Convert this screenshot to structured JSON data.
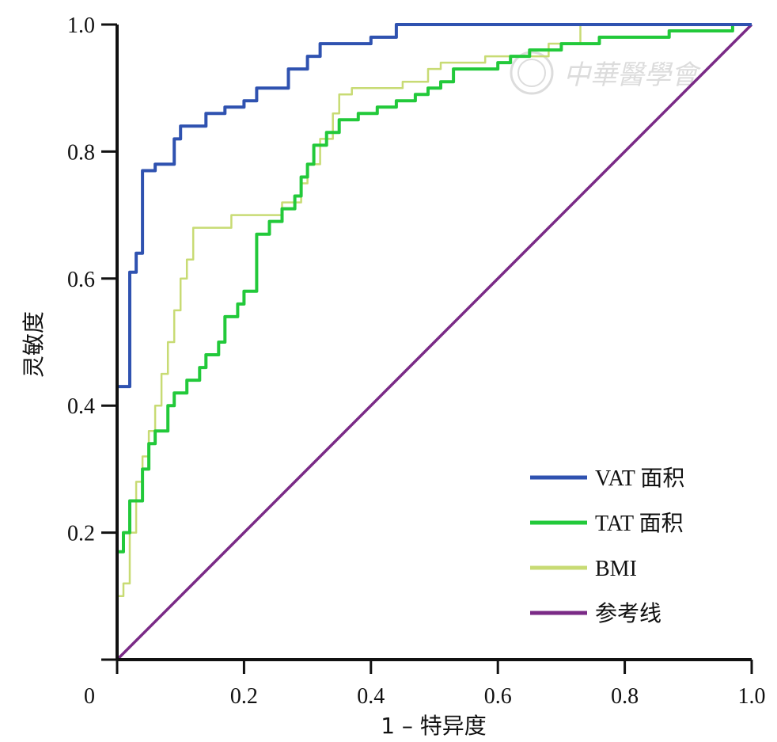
{
  "chart_data": {
    "type": "line",
    "xlabel": "1 – 特异度",
    "ylabel": "灵敏度",
    "xlim": [
      0,
      1
    ],
    "ylim": [
      0,
      1
    ],
    "x_ticks": [
      "0",
      "0.2",
      "0.4",
      "0.6",
      "0.8",
      "1.0"
    ],
    "y_ticks": [
      "0.2",
      "0.4",
      "0.6",
      "0.8",
      "1.0"
    ],
    "legend_position": "bottom-right",
    "grid": false,
    "series": [
      {
        "name": "VAT 面积",
        "color": "#2f52b0",
        "points": [
          [
            0,
            0
          ],
          [
            0,
            0.43
          ],
          [
            0.02,
            0.43
          ],
          [
            0.02,
            0.61
          ],
          [
            0.03,
            0.61
          ],
          [
            0.03,
            0.64
          ],
          [
            0.04,
            0.64
          ],
          [
            0.04,
            0.77
          ],
          [
            0.06,
            0.77
          ],
          [
            0.06,
            0.78
          ],
          [
            0.09,
            0.78
          ],
          [
            0.09,
            0.82
          ],
          [
            0.1,
            0.82
          ],
          [
            0.1,
            0.84
          ],
          [
            0.14,
            0.84
          ],
          [
            0.14,
            0.86
          ],
          [
            0.17,
            0.86
          ],
          [
            0.17,
            0.87
          ],
          [
            0.2,
            0.87
          ],
          [
            0.2,
            0.88
          ],
          [
            0.22,
            0.88
          ],
          [
            0.22,
            0.9
          ],
          [
            0.27,
            0.9
          ],
          [
            0.27,
            0.93
          ],
          [
            0.3,
            0.93
          ],
          [
            0.3,
            0.95
          ],
          [
            0.32,
            0.95
          ],
          [
            0.32,
            0.97
          ],
          [
            0.4,
            0.97
          ],
          [
            0.4,
            0.98
          ],
          [
            0.44,
            0.98
          ],
          [
            0.44,
            1.0
          ],
          [
            1.0,
            1.0
          ]
        ]
      },
      {
        "name": "TAT 面积",
        "color": "#22c93a",
        "points": [
          [
            0,
            0
          ],
          [
            0,
            0.17
          ],
          [
            0.01,
            0.17
          ],
          [
            0.01,
            0.2
          ],
          [
            0.02,
            0.2
          ],
          [
            0.02,
            0.25
          ],
          [
            0.04,
            0.25
          ],
          [
            0.04,
            0.3
          ],
          [
            0.05,
            0.3
          ],
          [
            0.05,
            0.34
          ],
          [
            0.06,
            0.34
          ],
          [
            0.06,
            0.36
          ],
          [
            0.08,
            0.36
          ],
          [
            0.08,
            0.4
          ],
          [
            0.09,
            0.4
          ],
          [
            0.09,
            0.42
          ],
          [
            0.11,
            0.42
          ],
          [
            0.11,
            0.44
          ],
          [
            0.13,
            0.44
          ],
          [
            0.13,
            0.46
          ],
          [
            0.14,
            0.46
          ],
          [
            0.14,
            0.48
          ],
          [
            0.16,
            0.48
          ],
          [
            0.16,
            0.5
          ],
          [
            0.17,
            0.5
          ],
          [
            0.17,
            0.54
          ],
          [
            0.19,
            0.54
          ],
          [
            0.19,
            0.56
          ],
          [
            0.2,
            0.56
          ],
          [
            0.2,
            0.58
          ],
          [
            0.22,
            0.58
          ],
          [
            0.22,
            0.67
          ],
          [
            0.24,
            0.67
          ],
          [
            0.24,
            0.69
          ],
          [
            0.26,
            0.69
          ],
          [
            0.26,
            0.71
          ],
          [
            0.28,
            0.71
          ],
          [
            0.28,
            0.73
          ],
          [
            0.29,
            0.73
          ],
          [
            0.29,
            0.76
          ],
          [
            0.3,
            0.76
          ],
          [
            0.3,
            0.78
          ],
          [
            0.31,
            0.78
          ],
          [
            0.31,
            0.81
          ],
          [
            0.33,
            0.81
          ],
          [
            0.33,
            0.83
          ],
          [
            0.35,
            0.83
          ],
          [
            0.35,
            0.85
          ],
          [
            0.38,
            0.85
          ],
          [
            0.38,
            0.86
          ],
          [
            0.41,
            0.86
          ],
          [
            0.41,
            0.87
          ],
          [
            0.44,
            0.87
          ],
          [
            0.44,
            0.88
          ],
          [
            0.47,
            0.88
          ],
          [
            0.47,
            0.89
          ],
          [
            0.49,
            0.89
          ],
          [
            0.49,
            0.9
          ],
          [
            0.51,
            0.9
          ],
          [
            0.51,
            0.91
          ],
          [
            0.53,
            0.91
          ],
          [
            0.53,
            0.93
          ],
          [
            0.6,
            0.93
          ],
          [
            0.6,
            0.94
          ],
          [
            0.62,
            0.94
          ],
          [
            0.62,
            0.95
          ],
          [
            0.65,
            0.95
          ],
          [
            0.65,
            0.96
          ],
          [
            0.7,
            0.96
          ],
          [
            0.7,
            0.97
          ],
          [
            0.76,
            0.97
          ],
          [
            0.76,
            0.98
          ],
          [
            0.87,
            0.98
          ],
          [
            0.87,
            0.99
          ],
          [
            0.97,
            0.99
          ],
          [
            0.97,
            1.0
          ],
          [
            1.0,
            1.0
          ]
        ]
      },
      {
        "name": "BMI",
        "color": "#c8db74",
        "points": [
          [
            0,
            0
          ],
          [
            0,
            0.1
          ],
          [
            0.01,
            0.1
          ],
          [
            0.01,
            0.12
          ],
          [
            0.02,
            0.12
          ],
          [
            0.02,
            0.2
          ],
          [
            0.03,
            0.2
          ],
          [
            0.03,
            0.28
          ],
          [
            0.04,
            0.28
          ],
          [
            0.04,
            0.32
          ],
          [
            0.05,
            0.32
          ],
          [
            0.05,
            0.36
          ],
          [
            0.06,
            0.36
          ],
          [
            0.06,
            0.4
          ],
          [
            0.07,
            0.4
          ],
          [
            0.07,
            0.45
          ],
          [
            0.08,
            0.45
          ],
          [
            0.08,
            0.5
          ],
          [
            0.09,
            0.5
          ],
          [
            0.09,
            0.55
          ],
          [
            0.1,
            0.55
          ],
          [
            0.1,
            0.6
          ],
          [
            0.11,
            0.6
          ],
          [
            0.11,
            0.63
          ],
          [
            0.12,
            0.63
          ],
          [
            0.12,
            0.68
          ],
          [
            0.18,
            0.68
          ],
          [
            0.18,
            0.7
          ],
          [
            0.26,
            0.7
          ],
          [
            0.26,
            0.72
          ],
          [
            0.29,
            0.72
          ],
          [
            0.29,
            0.75
          ],
          [
            0.3,
            0.75
          ],
          [
            0.3,
            0.78
          ],
          [
            0.32,
            0.78
          ],
          [
            0.32,
            0.82
          ],
          [
            0.34,
            0.82
          ],
          [
            0.34,
            0.86
          ],
          [
            0.35,
            0.86
          ],
          [
            0.35,
            0.89
          ],
          [
            0.37,
            0.89
          ],
          [
            0.37,
            0.9
          ],
          [
            0.45,
            0.9
          ],
          [
            0.45,
            0.91
          ],
          [
            0.49,
            0.91
          ],
          [
            0.49,
            0.93
          ],
          [
            0.51,
            0.93
          ],
          [
            0.51,
            0.94
          ],
          [
            0.58,
            0.94
          ],
          [
            0.58,
            0.95
          ],
          [
            0.68,
            0.95
          ],
          [
            0.68,
            0.97
          ],
          [
            0.73,
            0.97
          ],
          [
            0.73,
            1.0
          ],
          [
            1.0,
            1.0
          ]
        ]
      },
      {
        "name": "参考线",
        "color": "#7a2a86",
        "points": [
          [
            0,
            0
          ],
          [
            1,
            1
          ]
        ]
      }
    ]
  },
  "watermark": {
    "text": "中華醫學會"
  }
}
